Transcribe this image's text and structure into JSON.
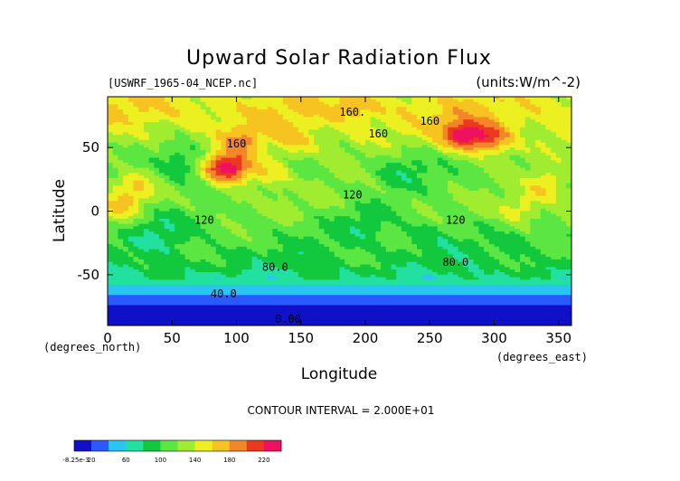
{
  "chart_data": {
    "type": "heatmap",
    "title": "Upward Solar Radiation Flux",
    "file_label": "[USWRF_1965-04_NCEP.nc]",
    "units_label": "(units:W/m^-2)",
    "xlabel": "Longitude",
    "ylabel": "Latitude",
    "x_unit_label": "(degrees_east)",
    "y_unit_label": "(degrees_north)",
    "xlim": [
      0,
      360
    ],
    "ylim": [
      -90,
      90
    ],
    "x_ticks": [
      0,
      50,
      100,
      150,
      200,
      250,
      300,
      350
    ],
    "y_ticks": [
      50,
      0,
      -50
    ],
    "contour_interval_text": "CONTOUR INTERVAL = 2.000E+01",
    "contour_labels": [
      {
        "text": "160.",
        "lon": 190,
        "lat": 75
      },
      {
        "text": "160",
        "lon": 250,
        "lat": 68
      },
      {
        "text": "160",
        "lon": 210,
        "lat": 58
      },
      {
        "text": "160",
        "lon": 100,
        "lat": 50
      },
      {
        "text": "120",
        "lon": 190,
        "lat": 10
      },
      {
        "text": "120",
        "lon": 75,
        "lat": -10
      },
      {
        "text": "120",
        "lon": 270,
        "lat": -10
      },
      {
        "text": "80.0",
        "lon": 130,
        "lat": -47
      },
      {
        "text": "80.0",
        "lon": 270,
        "lat": -43
      },
      {
        "text": "40.0",
        "lon": 90,
        "lat": -68
      },
      {
        "text": "0.00",
        "lon": 140,
        "lat": -88
      }
    ],
    "colorbar": {
      "min_label": "-8.25e-3",
      "labels": [
        "20",
        "60",
        "100",
        "140",
        "180",
        "220"
      ],
      "levels": [
        0,
        20,
        40,
        60,
        80,
        100,
        120,
        140,
        160,
        180,
        200,
        220,
        240
      ],
      "colors": [
        "#1010c8",
        "#2a5aff",
        "#29c6f0",
        "#22e0a0",
        "#12c83c",
        "#5ce642",
        "#a0ec30",
        "#ecf020",
        "#f6c320",
        "#f4862a",
        "#ec3820",
        "#f01060"
      ]
    },
    "lat_profile": [
      {
        "lat": 90,
        "value": 150
      },
      {
        "lat": 80,
        "value": 160
      },
      {
        "lat": 70,
        "value": 150
      },
      {
        "lat": 60,
        "value": 140
      },
      {
        "lat": 50,
        "value": 130
      },
      {
        "lat": 40,
        "value": 120
      },
      {
        "lat": 30,
        "value": 115
      },
      {
        "lat": 20,
        "value": 115
      },
      {
        "lat": 10,
        "value": 120
      },
      {
        "lat": 0,
        "value": 118
      },
      {
        "lat": -10,
        "value": 112
      },
      {
        "lat": -20,
        "value": 105
      },
      {
        "lat": -30,
        "value": 100
      },
      {
        "lat": -40,
        "value": 92
      },
      {
        "lat": -50,
        "value": 80
      },
      {
        "lat": -60,
        "value": 55
      },
      {
        "lat": -70,
        "value": 30
      },
      {
        "lat": -80,
        "value": 10
      },
      {
        "lat": -90,
        "value": 0
      }
    ],
    "hotspots": [
      {
        "lon": 105,
        "lat": 55,
        "value": 180
      },
      {
        "lon": 145,
        "lat": 55,
        "value": 170
      },
      {
        "lon": 275,
        "lat": 60,
        "value": 230
      },
      {
        "lon": 297,
        "lat": 57,
        "value": 210
      },
      {
        "lon": 97,
        "lat": 33,
        "value": 200
      },
      {
        "lon": 85,
        "lat": 35,
        "value": 180
      },
      {
        "lon": 125,
        "lat": 30,
        "value": 160
      },
      {
        "lon": 340,
        "lat": 20,
        "value": 160
      },
      {
        "lon": 20,
        "lat": 18,
        "value": 160
      },
      {
        "lon": 320,
        "lat": 0,
        "value": 155
      },
      {
        "lon": 10,
        "lat": 0,
        "value": 150
      },
      {
        "lon": 190,
        "lat": 82,
        "value": 180
      }
    ],
    "coldspots": [
      {
        "lon": 60,
        "lat": 40,
        "value": 80
      },
      {
        "lon": 230,
        "lat": 35,
        "value": 90
      },
      {
        "lon": 200,
        "lat": -10,
        "value": 90
      },
      {
        "lon": 40,
        "lat": -15,
        "value": 80
      },
      {
        "lon": 250,
        "lat": -20,
        "value": 85
      }
    ]
  }
}
